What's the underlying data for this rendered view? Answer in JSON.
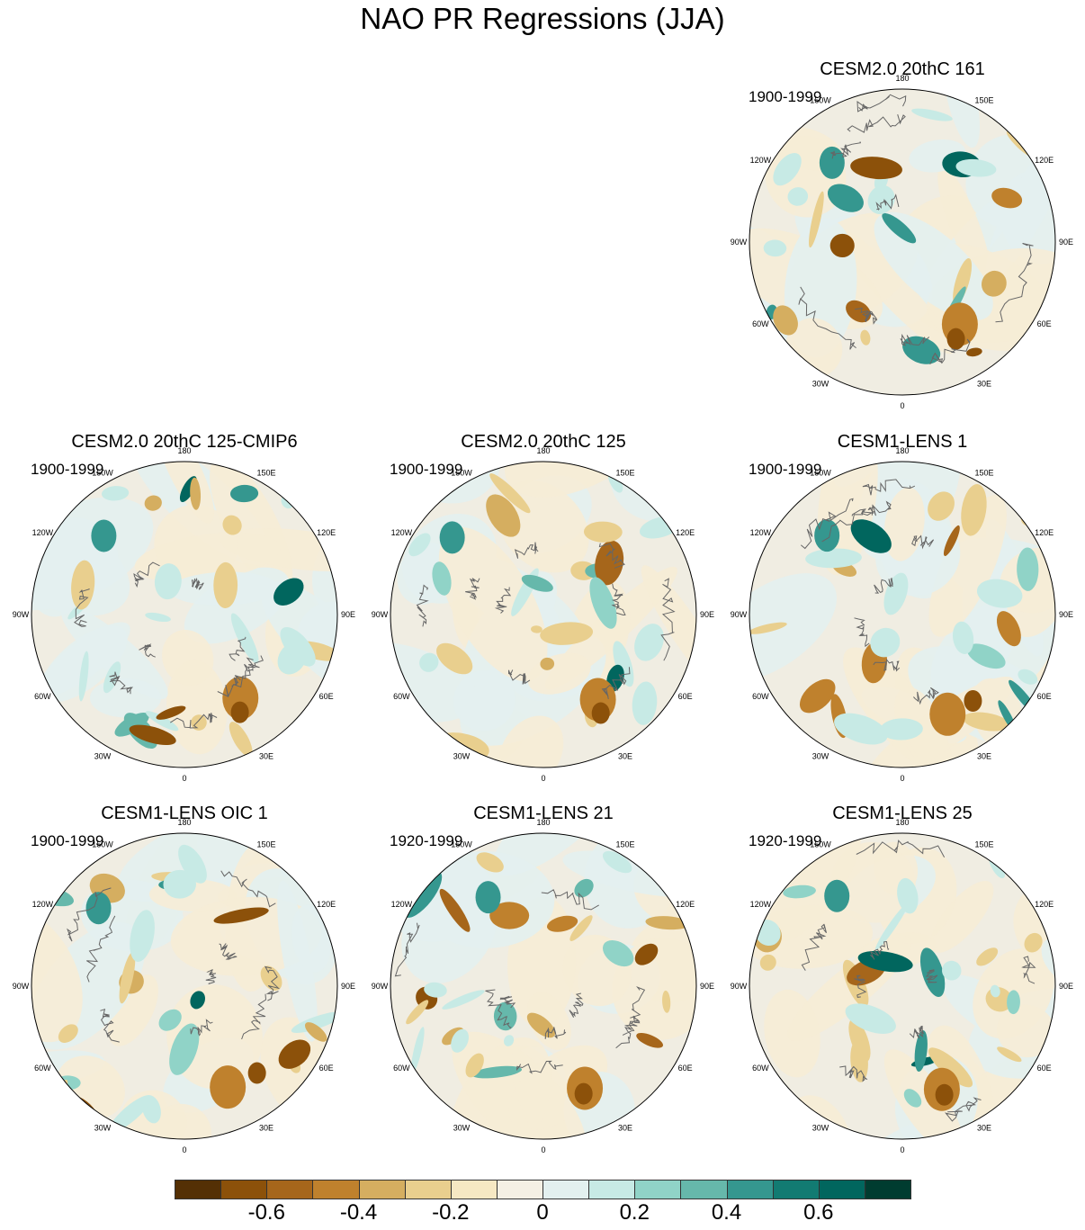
{
  "title": "NAO PR Regressions (JJA)",
  "lon_labels": [
    "180",
    "150E",
    "120E",
    "90E",
    "60E",
    "30E",
    "0",
    "30W",
    "60W",
    "90W",
    "120W",
    "150W"
  ],
  "panels": [
    {
      "title": "CESM2.0 20thC 161",
      "period": "1900-1999"
    },
    {
      "title": "CESM2.0 20thC 125-CMIP6",
      "period": "1900-1999"
    },
    {
      "title": "CESM2.0 20thC 125",
      "period": "1900-1999"
    },
    {
      "title": "CESM1-LENS 1",
      "period": "1900-1999"
    },
    {
      "title": "CESM1-LENS OIC 1",
      "period": "1900-1999"
    },
    {
      "title": "CESM1-LENS 21",
      "period": "1920-1999"
    },
    {
      "title": "CESM1-LENS 25",
      "period": "1920-1999"
    }
  ],
  "colorbar": {
    "colors": [
      "#543005",
      "#8c510a",
      "#a6661b",
      "#bf812d",
      "#d5ae60",
      "#e9cf8e",
      "#f6e8c3",
      "#f5f0e4",
      "#e3f0ef",
      "#c7eae5",
      "#90d3c7",
      "#66b8ab",
      "#35978f",
      "#127b72",
      "#01665e",
      "#003c30"
    ],
    "tick_labels": [
      "-0.6",
      "-0.4",
      "-0.2",
      "0",
      "0.2",
      "0.4",
      "0.6"
    ]
  }
}
